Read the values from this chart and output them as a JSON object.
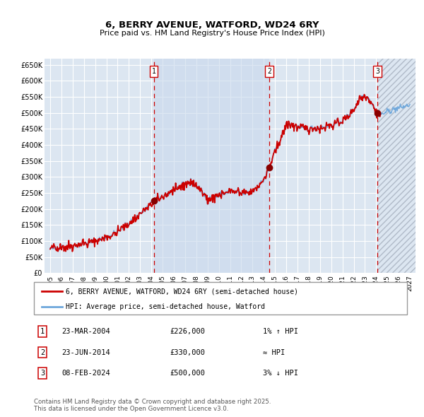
{
  "title": "6, BERRY AVENUE, WATFORD, WD24 6RY",
  "subtitle": "Price paid vs. HM Land Registry's House Price Index (HPI)",
  "ylabel_ticks": [
    "£0",
    "£50K",
    "£100K",
    "£150K",
    "£200K",
    "£250K",
    "£300K",
    "£350K",
    "£400K",
    "£450K",
    "£500K",
    "£550K",
    "£600K",
    "£650K"
  ],
  "ytick_values": [
    0,
    50000,
    100000,
    150000,
    200000,
    250000,
    300000,
    350000,
    400000,
    450000,
    500000,
    550000,
    600000,
    650000
  ],
  "xlim": [
    1994.5,
    2027.5
  ],
  "ylim": [
    0,
    670000
  ],
  "plot_bg_color": "#dce6f1",
  "grid_color": "#ffffff",
  "line_color_hpi": "#6fa8dc",
  "line_color_paid": "#cc0000",
  "sale_marker_color": "#880000",
  "vline_color": "#cc0000",
  "sale1_x": 2004.22,
  "sale1_y": 226000,
  "sale2_x": 2014.48,
  "sale2_y": 330000,
  "sale3_x": 2024.1,
  "sale3_y": 500000,
  "shade_x1": 2004.22,
  "shade_x2": 2014.48,
  "hatch_x": 2024.1,
  "legend_line1": "6, BERRY AVENUE, WATFORD, WD24 6RY (semi-detached house)",
  "legend_line2": "HPI: Average price, semi-detached house, Watford",
  "table_entries": [
    {
      "num": "1",
      "date": "23-MAR-2004",
      "price": "£226,000",
      "hpi": "1% ↑ HPI"
    },
    {
      "num": "2",
      "date": "23-JUN-2014",
      "price": "£330,000",
      "hpi": "≈ HPI"
    },
    {
      "num": "3",
      "date": "08-FEB-2024",
      "price": "£500,000",
      "hpi": "3% ↓ HPI"
    }
  ],
  "footnote": "Contains HM Land Registry data © Crown copyright and database right 2025.\nThis data is licensed under the Open Government Licence v3.0.",
  "xtick_years": [
    1995,
    1996,
    1997,
    1998,
    1999,
    2000,
    2001,
    2002,
    2003,
    2004,
    2005,
    2006,
    2007,
    2008,
    2009,
    2010,
    2011,
    2012,
    2013,
    2014,
    2015,
    2016,
    2017,
    2018,
    2019,
    2020,
    2021,
    2022,
    2023,
    2024,
    2025,
    2026,
    2027
  ]
}
